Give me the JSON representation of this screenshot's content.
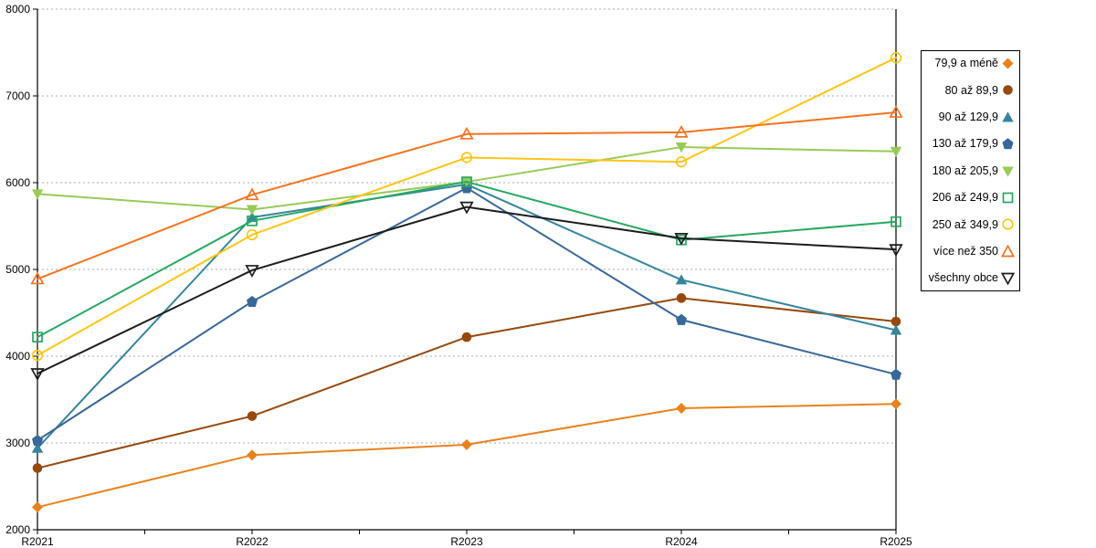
{
  "chart_data": {
    "type": "line",
    "title": "",
    "xlabel": "",
    "ylabel": "",
    "categories": [
      "R2021",
      "R2022",
      "R2023",
      "R2024",
      "R2025"
    ],
    "ylim": [
      2000,
      8000
    ],
    "ytick_step": 1000,
    "ytick_labels": [
      "2000",
      "3000",
      "4000",
      "5000",
      "6000",
      "7000",
      "8000"
    ],
    "grid": "horizontal dashed gray",
    "legend_position": "right boxed",
    "background_color": "#ffffff",
    "axis_color": "#000000",
    "gridline_color": "#ababab",
    "series": [
      {
        "name": "79,9 a méně",
        "marker": "diamond",
        "fill": "solid",
        "color": "#E8821D",
        "values": [
          2260,
          2860,
          2980,
          3400,
          3450
        ]
      },
      {
        "name": "80 až 89,9",
        "marker": "circle",
        "fill": "solid",
        "color": "#96490D",
        "values": [
          2710,
          3310,
          4220,
          4670,
          4400
        ]
      },
      {
        "name": "90 až 129,9",
        "marker": "triangle-up",
        "fill": "solid",
        "color": "#35859E",
        "values": [
          2940,
          5600,
          5980,
          4880,
          4300
        ]
      },
      {
        "name": "130 až 179,9",
        "marker": "pentagon",
        "fill": "solid",
        "color": "#38689A",
        "values": [
          3030,
          4630,
          5940,
          4420,
          3790
        ]
      },
      {
        "name": "180 až 205,9",
        "marker": "triangle-down",
        "fill": "solid",
        "color": "#97CB58",
        "values": [
          5870,
          5690,
          6010,
          6410,
          6360
        ]
      },
      {
        "name": "206 až 249,9",
        "marker": "square",
        "fill": "open",
        "color": "#27A862",
        "values": [
          4220,
          5560,
          6010,
          5340,
          5550
        ]
      },
      {
        "name": "250 až 349,9",
        "marker": "circle",
        "fill": "open",
        "color": "#FDC513",
        "values": [
          4010,
          5400,
          6290,
          6240,
          7440
        ]
      },
      {
        "name": "více než 350",
        "marker": "triangle-up",
        "fill": "open",
        "color": "#F4731F",
        "values": [
          4890,
          5860,
          6560,
          6580,
          6810
        ]
      },
      {
        "name": "všechny obce",
        "marker": "triangle-down",
        "fill": "open",
        "color": "#1C1C1C",
        "values": [
          3800,
          4990,
          5720,
          5360,
          5230
        ]
      }
    ]
  }
}
